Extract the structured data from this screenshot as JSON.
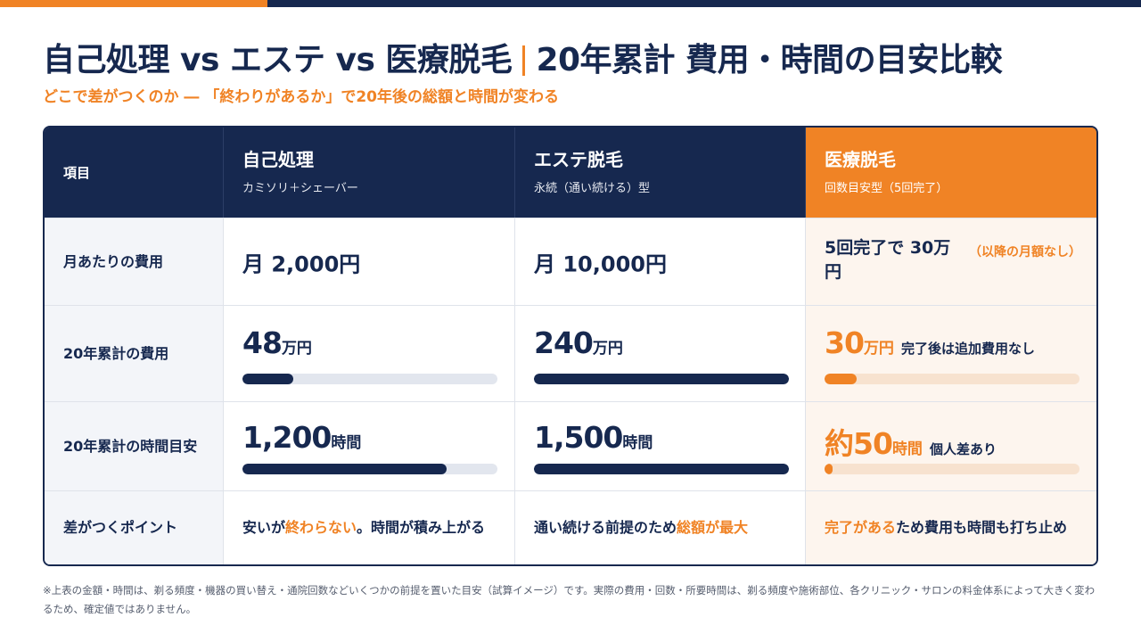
{
  "colors": {
    "navy": "#16284f",
    "orange": "#f08325"
  },
  "title_left": "自己処理 vs エステ vs 医療脱毛",
  "title_right": "20年累計 費用・時間の目安比較",
  "subtitle": "どこで差がつくのか ― 「終わりがあるか」で20年後の総額と時間が変わる",
  "table": {
    "header": {
      "item": "項目",
      "columns": [
        {
          "title": "自己処理",
          "subtitle": "カミソリ＋シェーバー"
        },
        {
          "title": "エステ脱毛",
          "subtitle": "永続（通い続ける）型"
        },
        {
          "title": "医療脱毛",
          "subtitle": "回数目安型（5回完了）"
        }
      ]
    },
    "rows": {
      "monthly": {
        "label": "月あたりの費用",
        "self": "月 2,000円",
        "esthe": "月 10,000円",
        "medical": "5回完了で 30万円",
        "medical_note": "（以降の月額なし）"
      },
      "cost20": {
        "label": "20年累計の費用",
        "self": {
          "value": "48",
          "unit": "万円",
          "fill": 0.2
        },
        "esthe": {
          "value": "240",
          "unit": "万円",
          "fill": 1.0
        },
        "medical": {
          "value": "30",
          "unit": "万円",
          "note": "完了後は追加費用なし",
          "fill": 0.125
        }
      },
      "time20": {
        "label": "20年累計の時間目安",
        "self": {
          "value": "1,200",
          "unit": "時間",
          "fill": 0.8
        },
        "esthe": {
          "value": "1,500",
          "unit": "時間",
          "fill": 1.0
        },
        "medical": {
          "prefix": "約",
          "value": "50",
          "unit": "時間",
          "note": "個人差あり",
          "fill": 0.033
        }
      },
      "point": {
        "label": "差がつくポイント",
        "self": {
          "pre": "安いが",
          "hl": "終わらない",
          "post": "。時間が積み上がる"
        },
        "esthe": {
          "pre": "通い続ける前提のため",
          "hl": "総額が最大",
          "post": ""
        },
        "medical": {
          "pre": "",
          "hl": "完了がある",
          "post": "ため費用も時間も打ち止め"
        }
      }
    }
  },
  "footnote": "※上表の金額・時間は、剃る頻度・機器の買い替え・通院回数などいくつかの前提を置いた目安（試算イメージ）です。実際の費用・回数・所要時間は、剃る頻度や施術部位、各クリニック・サロンの料金体系によって大きく変わるため、確定値ではありません。"
}
